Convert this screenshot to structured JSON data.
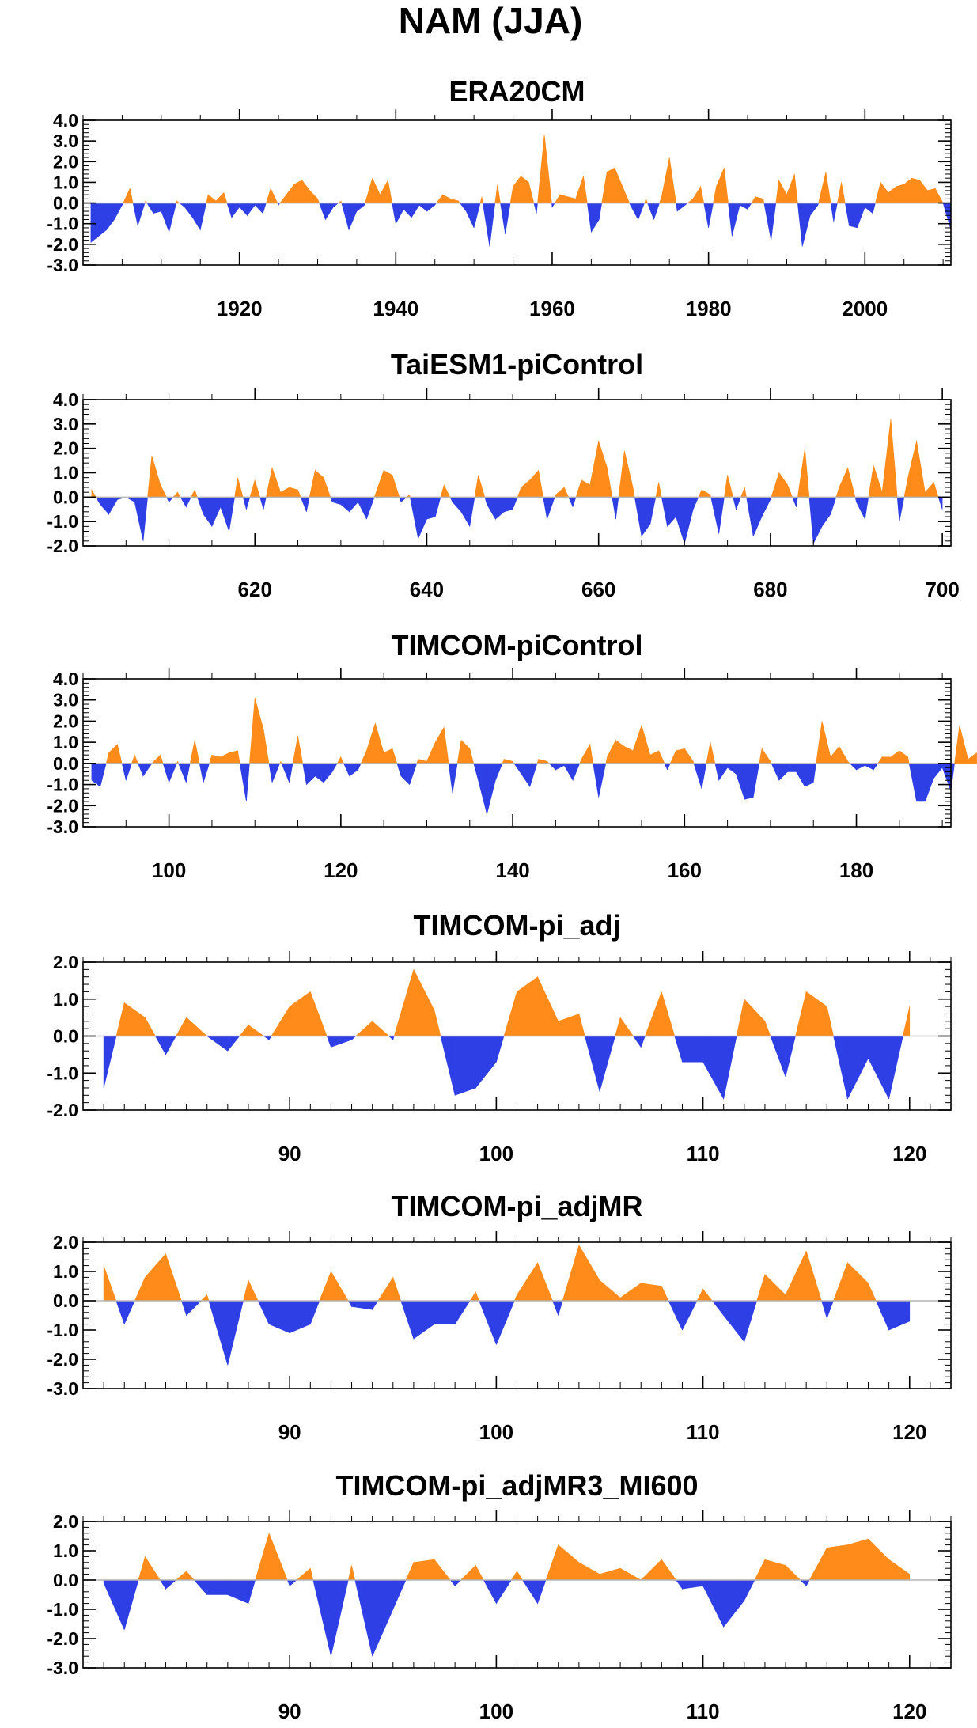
{
  "figure_title": "NAM (JJA)",
  "colors": {
    "positive": "#ff8c1a",
    "negative": "#2f3fe6",
    "frame": "#000000",
    "zero_line": "#b4b4b4"
  },
  "chart_data": [
    {
      "type": "area",
      "title": "ERA20CM",
      "x_start": 1901,
      "xlim": [
        1900,
        2011
      ],
      "ylim": [
        -3,
        4
      ],
      "yticks": [
        4,
        3,
        2,
        1,
        0,
        -1,
        -2,
        -3
      ],
      "ytick_labels": [
        "4.0",
        "3.0",
        "2.0",
        "1.0",
        "0.0",
        "-1.0",
        "-2.0",
        "-3.0"
      ],
      "xticks": [
        1920,
        1940,
        1960,
        1980,
        2000
      ],
      "ytick_minor_step": 0.2,
      "xtick_minor_step": 5,
      "values": [
        -1.9,
        -1.6,
        -1.3,
        -0.8,
        -0.1,
        0.7,
        -1.1,
        0.1,
        -0.5,
        -0.4,
        -1.4,
        0.1,
        -0.2,
        -0.7,
        -1.3,
        0.4,
        0.1,
        0.5,
        -0.7,
        -0.2,
        -0.6,
        -0.1,
        -0.5,
        0.7,
        -0.1,
        0.4,
        0.9,
        1.1,
        0.6,
        0.2,
        -0.8,
        -0.2,
        0.1,
        -1.3,
        -0.4,
        -0.1,
        1.2,
        0.4,
        1.1,
        -1.0,
        -0.3,
        -0.7,
        -0.1,
        -0.4,
        -0.1,
        0.4,
        0.2,
        0.1,
        -0.4,
        -1.2,
        0.3,
        -2.1,
        0.9,
        -1.5,
        0.8,
        1.3,
        1.0,
        -0.5,
        3.3,
        -0.2,
        0.4,
        0.3,
        0.2,
        1.3,
        -1.4,
        -0.8,
        1.5,
        1.7,
        0.8,
        -0.1,
        -0.8,
        0.2,
        -0.8,
        0.3,
        2.2,
        -0.4,
        -0.1,
        0.2,
        0.8,
        -1.2,
        0.8,
        1.7,
        -1.6,
        -0.1,
        -0.3,
        0.3,
        0.2,
        -1.8,
        1.1,
        0.4,
        1.4,
        -2.1,
        -0.6,
        -0.1,
        1.5,
        -0.9,
        1.0,
        -1.1,
        -1.2,
        -0.2,
        -0.5,
        1.0,
        0.5,
        0.8,
        0.9,
        1.2,
        1.1,
        0.6,
        0.7,
        0.0,
        -1.3
      ]
    },
    {
      "type": "area",
      "title": "TaiESM1-piControl",
      "x_start": 601,
      "xlim": [
        600,
        701
      ],
      "ylim": [
        -2,
        4
      ],
      "yticks": [
        4,
        3,
        2,
        1,
        0,
        -1,
        -2
      ],
      "ytick_labels": [
        "4.0",
        "3.0",
        "2.0",
        "1.0",
        "0.0",
        "-1.0",
        "-2.0"
      ],
      "xticks": [
        620,
        640,
        660,
        680,
        700
      ],
      "ytick_minor_step": 0.2,
      "xtick_minor_step": 5,
      "values": [
        0.3,
        -0.3,
        -0.7,
        -0.1,
        0.0,
        -0.2,
        -1.8,
        1.7,
        0.5,
        -0.2,
        0.2,
        -0.4,
        0.3,
        -0.7,
        -1.2,
        -0.4,
        -1.4,
        0.8,
        -0.5,
        0.7,
        -0.5,
        1.2,
        0.2,
        0.4,
        0.3,
        -0.6,
        1.1,
        0.8,
        -0.2,
        -0.3,
        -0.6,
        -0.2,
        -0.9,
        0.1,
        1.1,
        0.9,
        -0.2,
        0.1,
        -1.7,
        -0.9,
        -0.8,
        0.5,
        -0.2,
        -0.6,
        -1.2,
        0.9,
        -0.3,
        -0.9,
        -0.6,
        -0.5,
        0.4,
        0.7,
        1.1,
        -0.9,
        0.1,
        0.4,
        -0.4,
        0.7,
        0.5,
        2.3,
        1.2,
        -0.9,
        1.9,
        0.4,
        -1.6,
        -1.1,
        0.6,
        -1.2,
        -0.8,
        -1.9,
        -0.5,
        0.3,
        0.1,
        -1.5,
        0.9,
        -0.5,
        0.4,
        -1.6,
        -0.8,
        -0.1,
        1.0,
        0.5,
        -0.4,
        2.0,
        -1.9,
        -1.2,
        -0.7,
        0.4,
        1.2,
        -0.2,
        -0.9,
        1.3,
        0.2,
        3.2,
        -1.0,
        0.8,
        2.3,
        0.2,
        0.6,
        -0.5
      ]
    },
    {
      "type": "area",
      "title": "TIMCOM-piControl",
      "x_start": 91,
      "xlim": [
        90,
        191
      ],
      "ylim": [
        -3,
        4
      ],
      "yticks": [
        4,
        3,
        2,
        1,
        0,
        -1,
        -2,
        -3
      ],
      "ytick_labels": [
        "4.0",
        "3.0",
        "2.0",
        "1.0",
        "0.0",
        "-1.0",
        "-2.0",
        "-3.0"
      ],
      "xticks": [
        100,
        120,
        140,
        160,
        180
      ],
      "ytick_minor_step": 0.2,
      "xtick_minor_step": 5,
      "values": [
        -0.8,
        -1.1,
        0.5,
        0.9,
        -0.8,
        0.4,
        -0.6,
        0.0,
        0.4,
        -0.9,
        0.1,
        -0.9,
        1.1,
        -0.9,
        0.4,
        0.3,
        0.5,
        0.6,
        -1.8,
        3.1,
        1.6,
        -0.9,
        0.1,
        -0.9,
        1.3,
        -1.0,
        -0.6,
        -0.9,
        -0.4,
        0.3,
        -0.6,
        -0.3,
        0.6,
        1.9,
        0.5,
        0.7,
        -0.6,
        -1.0,
        0.2,
        0.1,
        1.0,
        1.7,
        -1.4,
        1.1,
        0.7,
        -0.8,
        -2.4,
        -0.8,
        0.2,
        0.1,
        -0.5,
        -1.1,
        0.2,
        0.1,
        -0.3,
        -0.1,
        -0.8,
        0.2,
        0.9,
        -1.6,
        0.3,
        1.1,
        0.8,
        0.6,
        1.8,
        0.4,
        0.6,
        -0.3,
        0.6,
        0.7,
        0.1,
        -1.2,
        1.0,
        -0.8,
        -0.2,
        -0.5,
        -1.7,
        -1.6,
        0.7,
        0.1,
        -0.8,
        -0.4,
        -0.4,
        -1.1,
        -0.9,
        2.0,
        0.3,
        0.8,
        0.1,
        -0.3,
        -0.1,
        -0.3,
        0.3,
        0.3,
        0.6,
        0.3,
        -1.8,
        -1.8,
        -0.7,
        -0.2,
        -1.3,
        1.8,
        0.2,
        0.5
      ]
    },
    {
      "type": "area",
      "title": "TIMCOM-pi_adj",
      "x_start": 81,
      "xlim": [
        80,
        122
      ],
      "ylim": [
        -2,
        2
      ],
      "yticks": [
        2,
        1,
        0,
        -1,
        -2
      ],
      "ytick_labels": [
        "2.0",
        "1.0",
        "0.0",
        "-1.0",
        "-2.0"
      ],
      "xticks": [
        90,
        100,
        110,
        120
      ],
      "ytick_minor_step": 0.2,
      "xtick_minor_step": 1,
      "values": [
        -1.4,
        0.9,
        0.5,
        -0.5,
        0.5,
        0.0,
        -0.4,
        0.3,
        -0.1,
        0.8,
        1.2,
        -0.3,
        -0.1,
        0.4,
        -0.1,
        1.8,
        0.7,
        -1.6,
        -1.4,
        -0.7,
        1.2,
        1.6,
        0.4,
        0.6,
        -1.5,
        0.5,
        -0.3,
        1.2,
        -0.7,
        -0.7,
        -1.7,
        1.0,
        0.4,
        -1.1,
        1.2,
        0.8,
        -1.7,
        -0.6,
        -1.7,
        0.8
      ]
    },
    {
      "type": "area",
      "title": "TIMCOM-pi_adjMR",
      "x_start": 81,
      "xlim": [
        80,
        122
      ],
      "ylim": [
        -3,
        2
      ],
      "yticks": [
        2,
        1,
        0,
        -1,
        -2,
        -3
      ],
      "ytick_labels": [
        "2.0",
        "1.0",
        "0.0",
        "-1.0",
        "-2.0",
        "-3.0"
      ],
      "xticks": [
        90,
        100,
        110,
        120
      ],
      "ytick_minor_step": 0.2,
      "xtick_minor_step": 1,
      "values": [
        1.2,
        -0.8,
        0.8,
        1.6,
        -0.5,
        0.2,
        -2.2,
        0.7,
        -0.8,
        -1.1,
        -0.8,
        1.0,
        -0.2,
        -0.3,
        0.8,
        -1.3,
        -0.8,
        -0.8,
        0.3,
        -1.5,
        0.2,
        1.3,
        -0.5,
        1.9,
        0.7,
        0.1,
        0.6,
        0.5,
        -1.0,
        0.4,
        -0.5,
        -1.4,
        0.9,
        0.2,
        1.7,
        -0.6,
        1.3,
        0.6,
        -1.0,
        -0.7
      ]
    },
    {
      "type": "area",
      "title": "TIMCOM-pi_adjMR3_MI600",
      "x_start": 81,
      "xlim": [
        80,
        122
      ],
      "ylim": [
        -3,
        2
      ],
      "yticks": [
        2,
        1,
        0,
        -1,
        -2,
        -3
      ],
      "ytick_labels": [
        "2.0",
        "1.0",
        "0.0",
        "-1.0",
        "-2.0",
        "-3.0"
      ],
      "xticks": [
        90,
        100,
        110,
        120
      ],
      "ytick_minor_step": 0.2,
      "xtick_minor_step": 1,
      "values": [
        -0.1,
        -1.7,
        0.8,
        -0.3,
        0.3,
        -0.5,
        -0.5,
        -0.8,
        1.6,
        -0.2,
        0.4,
        -2.6,
        0.5,
        -2.6,
        -1.0,
        0.6,
        0.7,
        -0.2,
        0.5,
        -0.8,
        0.3,
        -0.8,
        1.2,
        0.6,
        0.2,
        0.4,
        0.0,
        0.7,
        -0.3,
        -0.2,
        -1.6,
        -0.7,
        0.7,
        0.5,
        -0.2,
        1.1,
        1.2,
        1.4,
        0.7,
        0.2
      ]
    }
  ]
}
